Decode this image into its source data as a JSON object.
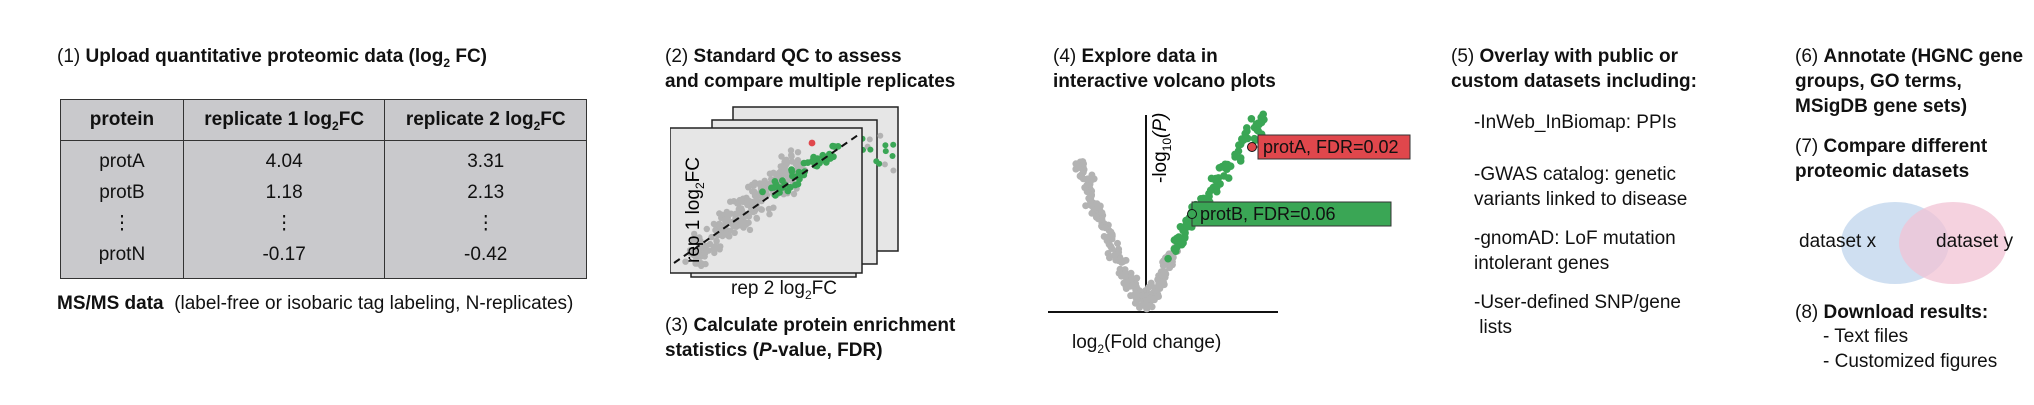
{
  "panel1": {
    "num": "(1)",
    "title": "Upload quantitative proteomic data (log",
    "title_sub": "2",
    "title_end": " FC)",
    "table": {
      "col1": "protein",
      "col2": "replicate 1 log",
      "col3": "replicate 2 log",
      "col_sub": "2",
      "col_suffix": "FC",
      "rows": [
        {
          "protein": "protA",
          "r1": "4.04",
          "r2": "3.31"
        },
        {
          "protein": "protB",
          "r1": "1.18",
          "r2": "2.13"
        },
        {
          "protein": "⋮",
          "r1": "⋮",
          "r2": "⋮"
        },
        {
          "protein": "protN",
          "r1": "-0.17",
          "r2": "-0.42"
        }
      ]
    },
    "msms_label": "MS/MS data",
    "msms_desc": "(label-free or isobaric tag labeling, N-replicates)"
  },
  "panel2": {
    "num": "(2)",
    "title_line1": "Standard QC to assess",
    "title_line2": "and compare multiple replicates",
    "ylabel": "rep 1 log",
    "xlabel": "rep 2 log",
    "label_sub": "2",
    "label_suffix": "FC"
  },
  "panel3": {
    "num": "(3)",
    "title_line1": "Calculate protein enrichment",
    "title_line2_a": "statistics (",
    "title_line2_p": "P",
    "title_line2_b": "-value, FDR)"
  },
  "panel4": {
    "num": "(4)",
    "title_line1": "Explore data in",
    "title_line2": "interactive volcano plots",
    "ylabel_a": "-log",
    "ylabel_sub": "10",
    "ylabel_b": "(P)",
    "xlabel_a": "log",
    "xlabel_sub": "2",
    "xlabel_b": "(Fold change)",
    "protA_label": "protA, FDR=0.02",
    "protB_label": "protB, FDR=0.06"
  },
  "panel5": {
    "num": "(5)",
    "title_line1": "Overlay with public or",
    "title_line2": "custom datasets including:",
    "items": [
      [
        "-InWeb_InBiomap: PPIs"
      ],
      [
        "-GWAS catalog: genetic",
        "variants linked to disease"
      ],
      [
        "-gnomAD: LoF mutation",
        "intolerant genes"
      ],
      [
        "-User-defined SNP/gene",
        " lists"
      ]
    ]
  },
  "panel6": {
    "num": "(6)",
    "title_line1": "Annotate (HGNC gene",
    "title_line2": "groups, GO terms,",
    "title_line3": "MSigDB gene sets)"
  },
  "panel7": {
    "num": "(7)",
    "title_line1": "Compare different",
    "title_line2": "proteomic datasets",
    "set_x": "dataset x",
    "set_y": "dataset y"
  },
  "panel8": {
    "num": "(8)",
    "title": "Download results:",
    "items": [
      "- Text files",
      "- Customized figures"
    ]
  },
  "colors": {
    "green": "#3aa655",
    "grey_point": "#b3b3b3",
    "red": "#e0474c",
    "venn_blue": "#c7d9ef",
    "venn_pink": "#f2c3d4",
    "table_bg": "#c9c9cc"
  }
}
